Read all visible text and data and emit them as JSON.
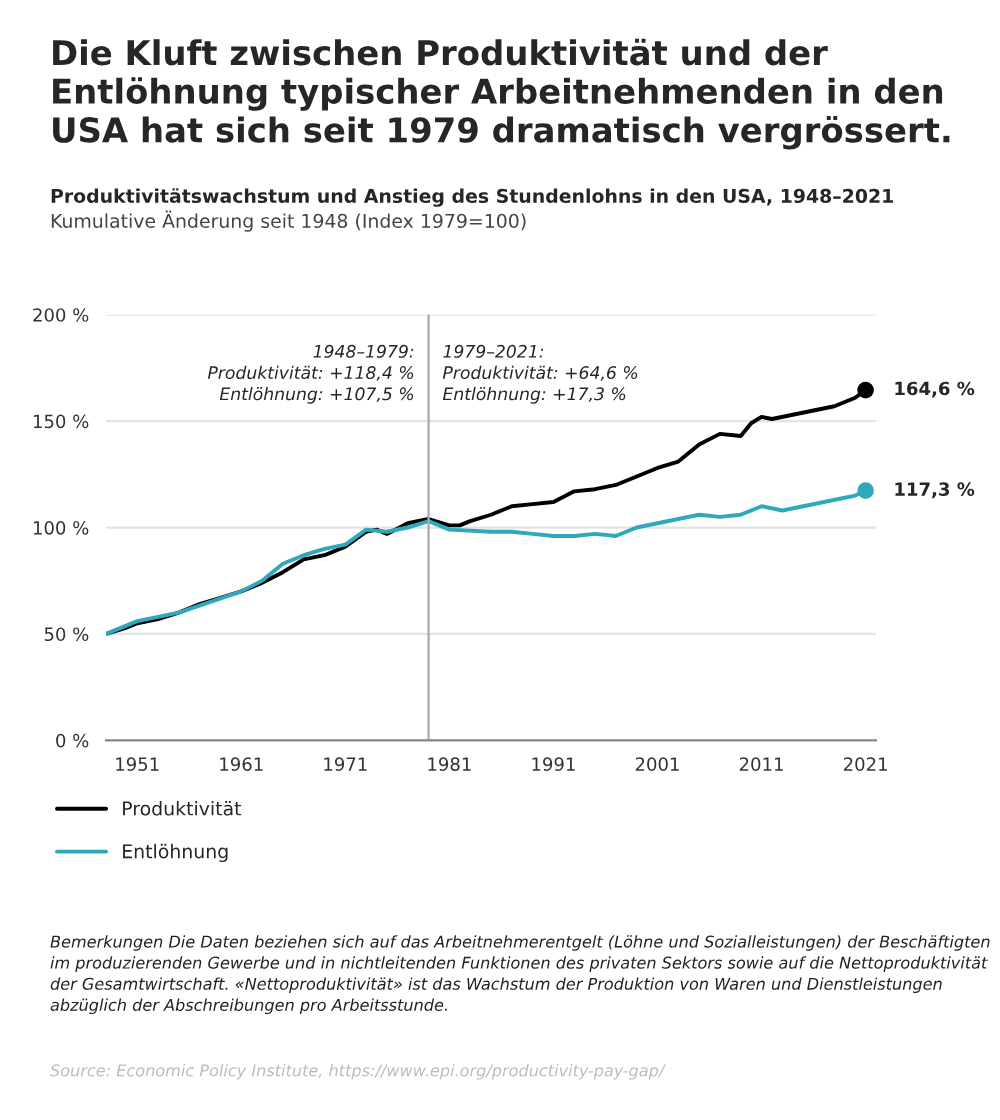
{
  "chart_data": {
    "type": "line",
    "title": "Die Kluft zwischen Produktivität und der Entlöhnung typischer Arbeitnehmenden in den USA hat sich seit 1979 dramatisch vergrössert.",
    "subtitle": "Produktivitätswachstum und Anstieg des Stundenlohns in den USA, 1948–2021",
    "ylabel": "Kumulative Änderung seit 1948 (Index 1979=100)",
    "series": [
      {
        "name": "Produktivität",
        "color": "#000000",
        "x": [
          1948,
          1950,
          1951,
          1953,
          1955,
          1957,
          1959,
          1961,
          1963,
          1965,
          1967,
          1969,
          1971,
          1973,
          1974,
          1975,
          1977,
          1979,
          1981,
          1982,
          1983,
          1985,
          1987,
          1989,
          1991,
          1993,
          1995,
          1997,
          1999,
          2001,
          2003,
          2005,
          2007,
          2009,
          2010,
          2011,
          2012,
          2014,
          2016,
          2018,
          2020,
          2021
        ],
        "values": [
          50,
          53,
          55,
          57,
          60,
          64,
          67,
          70,
          74,
          79,
          85,
          87,
          91,
          98,
          99,
          97,
          102,
          104,
          101,
          101,
          103,
          106,
          110,
          111,
          112,
          117,
          118,
          120,
          124,
          128,
          131,
          139,
          144,
          143,
          149,
          152,
          151,
          153,
          155,
          157,
          161,
          164.6
        ]
      },
      {
        "name": "Entlöhnung",
        "color": "#2fa8bd",
        "x": [
          1948,
          1951,
          1955,
          1961,
          1963,
          1965,
          1967,
          1969,
          1971,
          1973,
          1975,
          1977,
          1979,
          1981,
          1985,
          1987,
          1989,
          1991,
          1993,
          1995,
          1997,
          1999,
          2001,
          2003,
          2005,
          2007,
          2009,
          2011,
          2013,
          2015,
          2017,
          2019,
          2020,
          2021
        ],
        "values": [
          50,
          56,
          60,
          70,
          75,
          83,
          87,
          90,
          92,
          99,
          98,
          100,
          103,
          99,
          98,
          98,
          97,
          96,
          96,
          97,
          96,
          100,
          102,
          104,
          106,
          105,
          106,
          110,
          108,
          110,
          112,
          114,
          115,
          117.3
        ]
      }
    ],
    "xlim": [
      1948,
      2022
    ],
    "xticks": [
      1951,
      1961,
      1971,
      1981,
      1991,
      2001,
      2011,
      2021
    ],
    "ylim": [
      0,
      200
    ],
    "yticks": [
      {
        "value": 0,
        "label": "0 %"
      },
      {
        "value": 50,
        "label": "50 %"
      },
      {
        "value": 100,
        "label": "100 %"
      },
      {
        "value": 150,
        "label": "150 %"
      },
      {
        "value": 200,
        "label": "200 %"
      }
    ],
    "grid": "y",
    "legend": "bottom left",
    "line_style": "solid",
    "ref_lines": [
      {
        "axis": "x",
        "value": 1979,
        "color": "#aaaaaa"
      }
    ],
    "annotations": [
      "1948–1979:\nProduktivität: +118,4 %\nEntlöhnung: +107,5 %",
      "1979–2021:\nProduktivität: +64,6 %\nEntlöhnung: +17,3 %",
      {
        "text": "164,6 %",
        "x": 2021,
        "y": 164.6
      },
      {
        "text": "117,3 %",
        "x": 2021,
        "y": 117.3
      },
      "Bemerkungen Die Daten beziehen sich auf das Arbeitnehmerentgelt (Löhne und Sozialleistungen) der Beschäftigten im produzierenden Gewerbe und in nichtleitenden Funktionen des privaten Sektors sowie auf die Nettoproduktivität der Gesamtwirtschaft. «Nettoproduktivität» ist das Wachstum der Produktion von Waren und Dienstleistungen abzüglich der Abschreibungen pro Arbeitsstunde.",
      "Source: Economic Policy Institute, https://www.epi.org/productivity-pay-gap/"
    ]
  }
}
